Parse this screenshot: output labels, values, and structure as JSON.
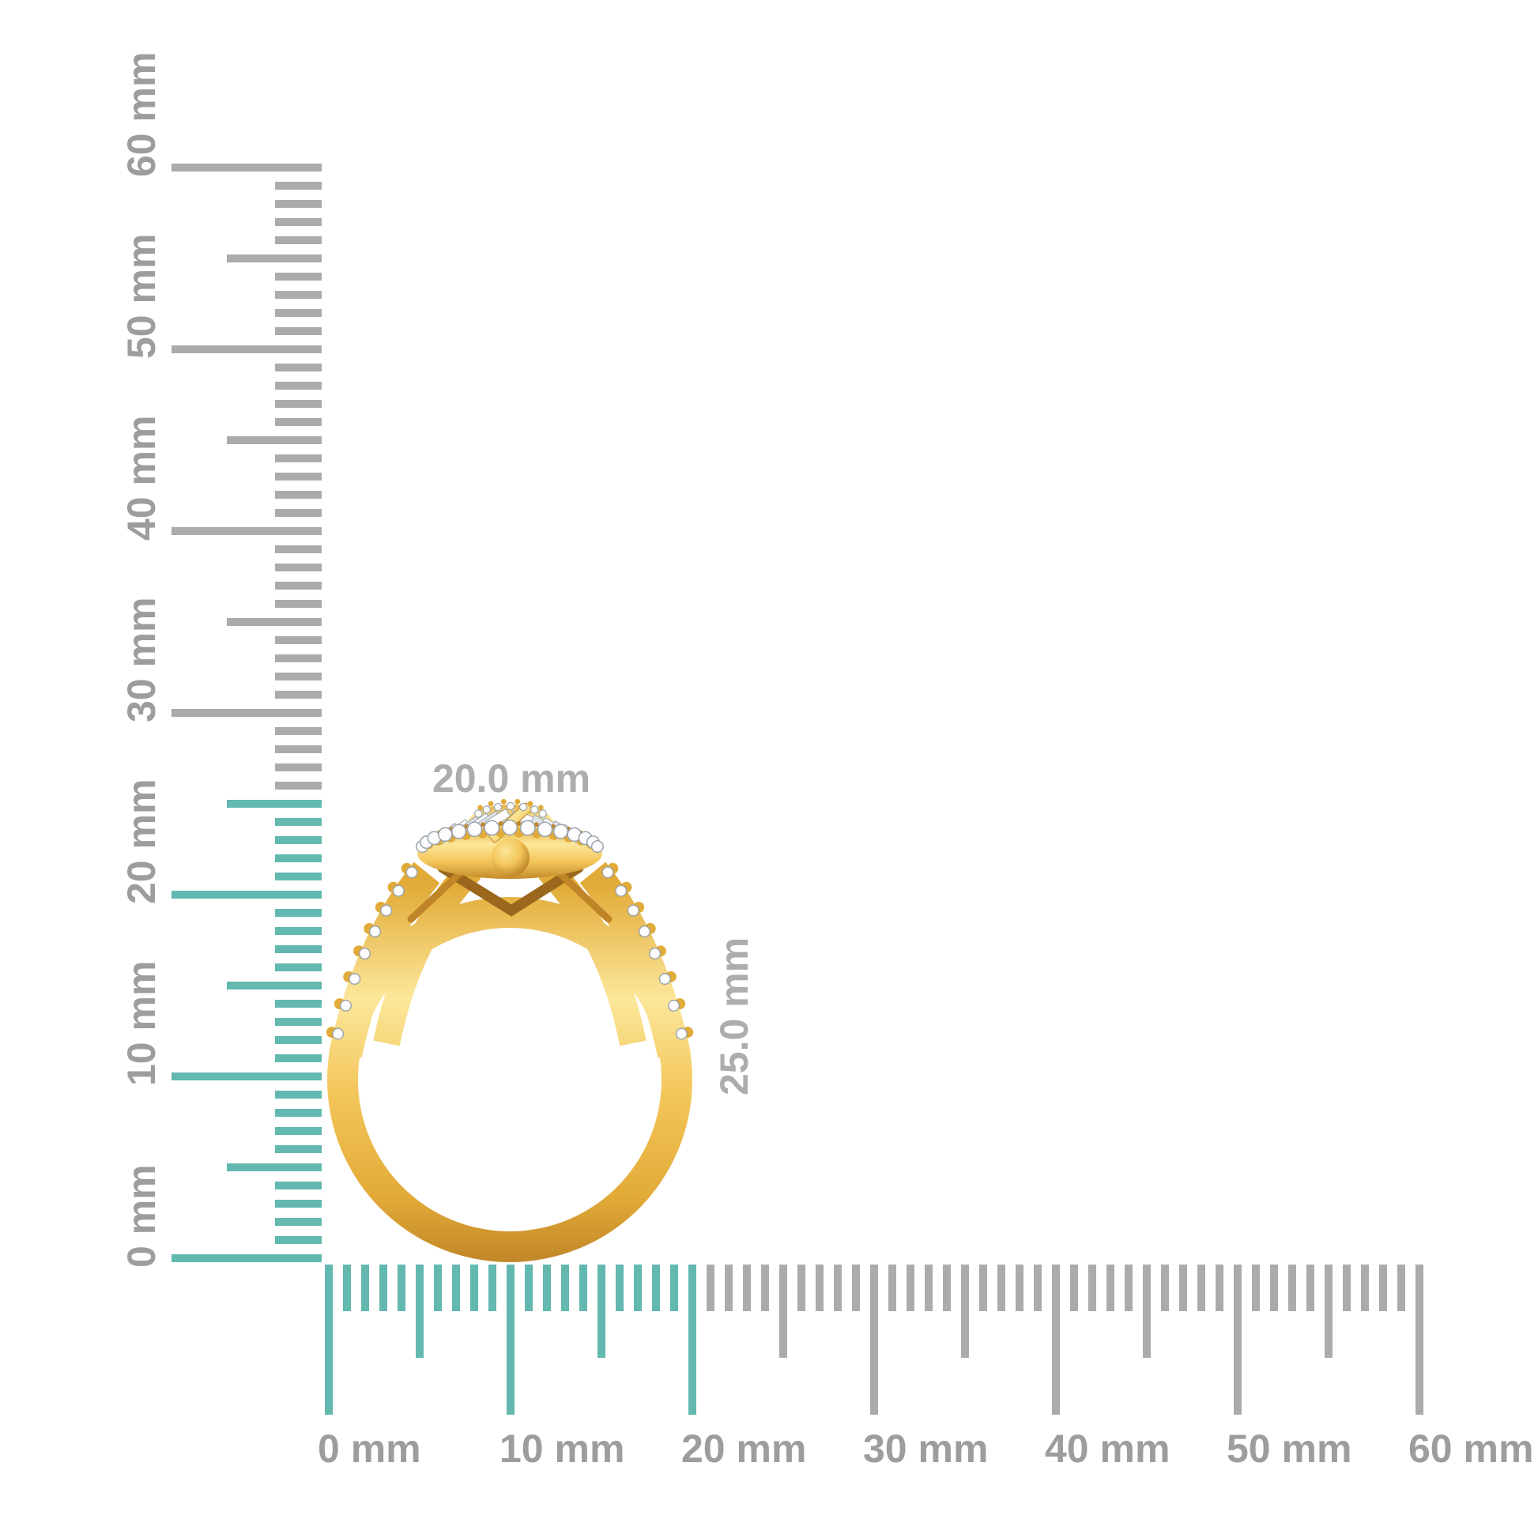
{
  "background_color": "#ffffff",
  "scene_description": "Yellow gold halo diamond ring shown in side profile against millimeter rulers",
  "dimension_annotations": {
    "width": "20.0 mm",
    "height": "25.0 mm",
    "label_color": "#adadad"
  },
  "rulers": {
    "unit": "mm",
    "label_color": "#9d9d9d",
    "tick_color": "#ababab",
    "highlight_tick_color": "#63b8af",
    "vertical": {
      "side": "left",
      "min_mm": 0,
      "max_mm": 60,
      "major_step_mm": 10,
      "medium_step_mm": 5,
      "minor_step_mm": 1,
      "highlighted_span_mm": 25,
      "major_labels": [
        "0 mm",
        "10 mm",
        "20 mm",
        "30 mm",
        "40 mm",
        "50 mm",
        "60 mm"
      ]
    },
    "horizontal": {
      "side": "bottom",
      "min_mm": 0,
      "max_mm": 60,
      "major_step_mm": 10,
      "medium_step_mm": 5,
      "minor_step_mm": 1,
      "highlighted_span_mm": 20,
      "major_labels": [
        "0 mm",
        "10 mm",
        "20 mm",
        "30 mm",
        "40 mm",
        "50 mm",
        "60 mm"
      ]
    }
  },
  "ring": {
    "description": "Yellow gold split-shank halo ring with round pave diamonds and baguette cluster top",
    "colors": {
      "gold_light": "#fce79b",
      "gold_base": "#f3c65a",
      "gold_mid": "#e2ab38",
      "gold_dark": "#c08528",
      "gold_deep": "#9a671d",
      "diamond_white": "#fdfdfe",
      "diamond_facet": "#dfe3e7",
      "diamond_edge": "#9aa3ab",
      "diamond_shadow": "#c3c9cf"
    }
  }
}
